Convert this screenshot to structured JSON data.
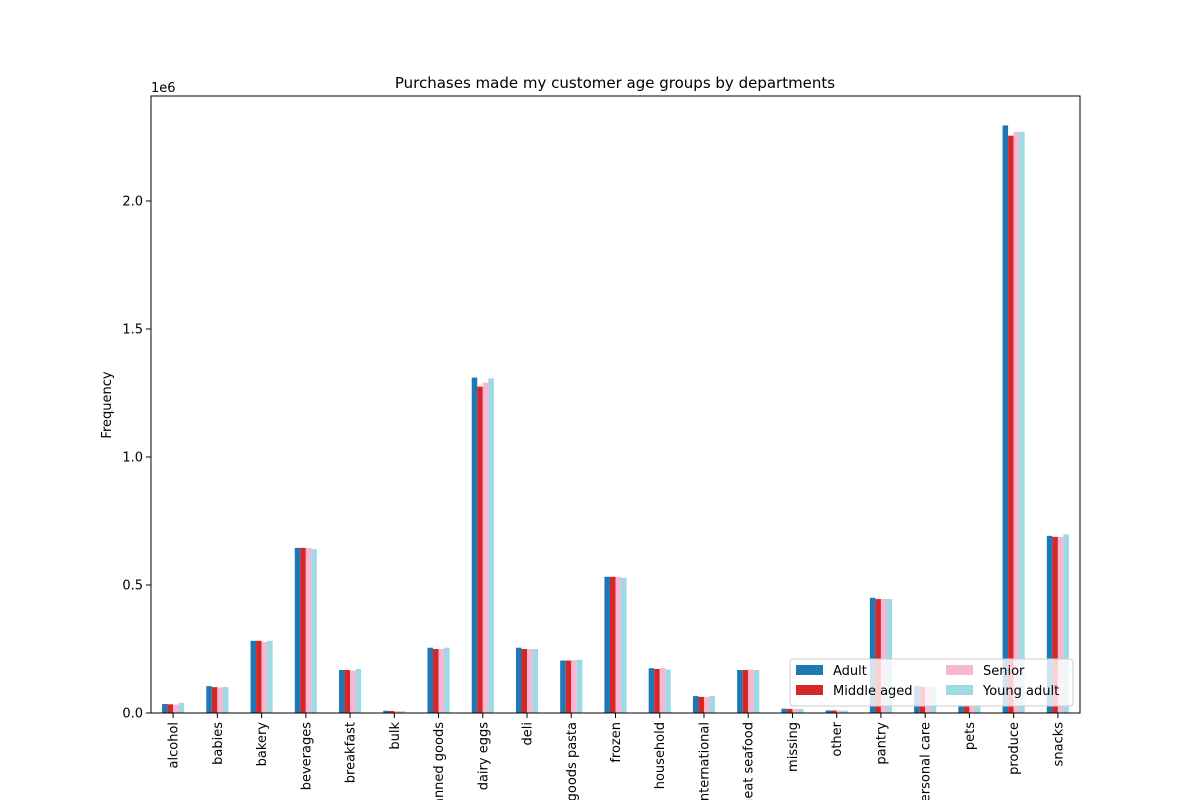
{
  "chart_data": {
    "type": "bar",
    "title": "Purchases made my customer age groups by departments",
    "xlabel": "",
    "ylabel": "Frequency",
    "y_offset_text": "1e6",
    "ylim": [
      0,
      2.41
    ],
    "y_ticks": [
      0.0,
      0.5,
      1.0,
      1.5,
      2.0
    ],
    "y_tick_labels": [
      "0.0",
      "0.5",
      "1.0",
      "1.5",
      "2.0"
    ],
    "grid": false,
    "legend_position": "bottom-right",
    "categories": [
      "alcohol",
      "babies",
      "bakery",
      "beverages",
      "breakfast",
      "bulk",
      "canned goods",
      "dairy eggs",
      "deli",
      "dry goods pasta",
      "frozen",
      "household",
      "international",
      "meat seafood",
      "missing",
      "other",
      "pantry",
      "personal care",
      "pets",
      "produce",
      "snacks"
    ],
    "series": [
      {
        "name": "Adult",
        "color": "#1f77b4",
        "values": [
          0.035,
          0.105,
          0.282,
          0.645,
          0.168,
          0.009,
          0.255,
          1.31,
          0.255,
          0.205,
          0.532,
          0.175,
          0.066,
          0.168,
          0.017,
          0.01,
          0.45,
          0.105,
          0.03,
          2.295,
          0.692
        ]
      },
      {
        "name": "Middle aged",
        "color": "#d62728",
        "values": [
          0.034,
          0.101,
          0.282,
          0.645,
          0.168,
          0.008,
          0.25,
          1.275,
          0.25,
          0.205,
          0.532,
          0.172,
          0.063,
          0.168,
          0.016,
          0.01,
          0.445,
          0.102,
          0.03,
          2.255,
          0.688
        ]
      },
      {
        "name": "Senior",
        "color": "#f7b6d2",
        "values": [
          0.033,
          0.1,
          0.278,
          0.645,
          0.165,
          0.008,
          0.25,
          1.29,
          0.25,
          0.207,
          0.532,
          0.175,
          0.063,
          0.17,
          0.016,
          0.01,
          0.445,
          0.103,
          0.03,
          2.27,
          0.688
        ]
      },
      {
        "name": "Young adult",
        "color": "#9edae5",
        "values": [
          0.04,
          0.102,
          0.282,
          0.64,
          0.172,
          0.007,
          0.255,
          1.307,
          0.25,
          0.208,
          0.528,
          0.17,
          0.067,
          0.168,
          0.016,
          0.009,
          0.445,
          0.103,
          0.03,
          2.27,
          0.698
        ]
      }
    ]
  }
}
